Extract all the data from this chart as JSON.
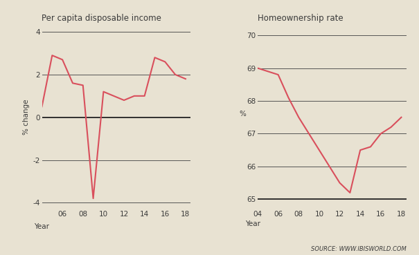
{
  "bg_color": "#e8e2d2",
  "line_color": "#d94f5c",
  "axis_color": "#3a3a3a",
  "grid_color": "#555555",
  "title1": "Per capita disposable income",
  "title2": "Homeownership rate",
  "ylabel1": "% change",
  "ylabel2": "%",
  "source_text": "SOURCE: WWW.IBISWORLD.COM",
  "left_x": [
    2004,
    2005,
    2006,
    2007,
    2008,
    2009,
    2010,
    2011,
    2012,
    2013,
    2014,
    2015,
    2016,
    2017,
    2018
  ],
  "left_y": [
    0.5,
    2.9,
    2.7,
    1.6,
    1.5,
    -3.8,
    1.2,
    1.0,
    0.8,
    1.0,
    1.0,
    2.8,
    2.6,
    2.0,
    1.8
  ],
  "right_x": [
    2004,
    2005,
    2006,
    2007,
    2008,
    2009,
    2010,
    2011,
    2012,
    2013,
    2014,
    2015,
    2016,
    2017,
    2018
  ],
  "right_y": [
    69.0,
    68.9,
    68.8,
    68.1,
    67.5,
    67.0,
    66.5,
    66.0,
    65.5,
    65.2,
    66.5,
    66.6,
    67.0,
    67.2,
    67.5
  ],
  "left_xlim": [
    2004,
    2018.5
  ],
  "left_ylim": [
    -4.3,
    4.3
  ],
  "left_yticks": [
    -4,
    -2,
    0,
    2,
    4
  ],
  "left_xticks": [
    2006,
    2008,
    2010,
    2012,
    2014,
    2016,
    2018
  ],
  "left_xtick_labels": [
    "06",
    "08",
    "10",
    "12",
    "14",
    "16",
    "18"
  ],
  "right_xlim": [
    2004,
    2018.5
  ],
  "right_ylim": [
    64.7,
    70.3
  ],
  "right_yticks": [
    65,
    66,
    67,
    68,
    69,
    70
  ],
  "right_xticks": [
    2004,
    2006,
    2008,
    2010,
    2012,
    2014,
    2016,
    2018
  ],
  "right_xtick_labels": [
    "04",
    "06",
    "08",
    "10",
    "12",
    "14",
    "16",
    "18"
  ]
}
